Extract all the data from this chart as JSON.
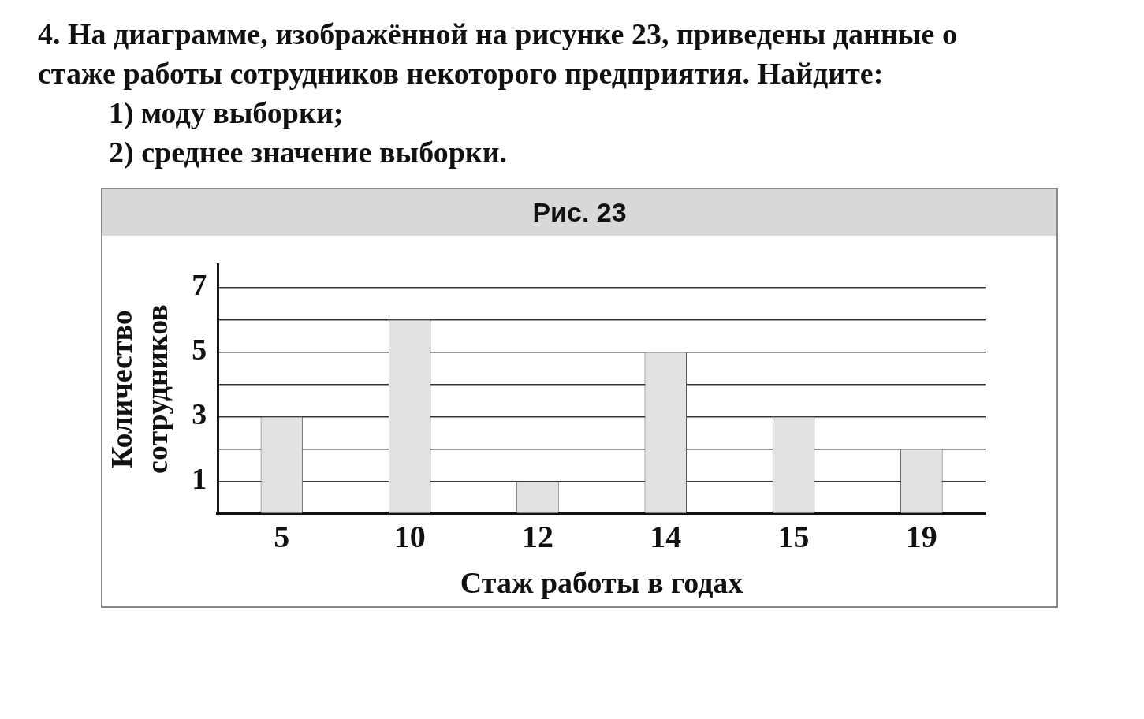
{
  "chart_data": {
    "type": "bar",
    "title": "Рис. 23",
    "annotations": [
      "4. На диаграмме, изображённой на рисунке 23, приведены данные о стаже работы сотрудников некоторого предприятия. Найдите:",
      "1) моду выборки;",
      "2) среднее значение выборки."
    ],
    "xlabel": "Стаж работы в годах",
    "ylabel": "Количество сотрудников",
    "categories": [
      "5",
      "10",
      "12",
      "14",
      "15",
      "19"
    ],
    "values": [
      3,
      6,
      1,
      5,
      3,
      2
    ],
    "color": "#e2e2e2",
    "ylim": [
      0,
      7.7
    ],
    "yticks": [
      {
        "value": 0,
        "label": null
      },
      1,
      {
        "value": 2,
        "label": null
      },
      3,
      {
        "value": 4,
        "label": null
      },
      5,
      {
        "value": 6,
        "label": null
      },
      7
    ],
    "grid": "y",
    "legend": false
  }
}
